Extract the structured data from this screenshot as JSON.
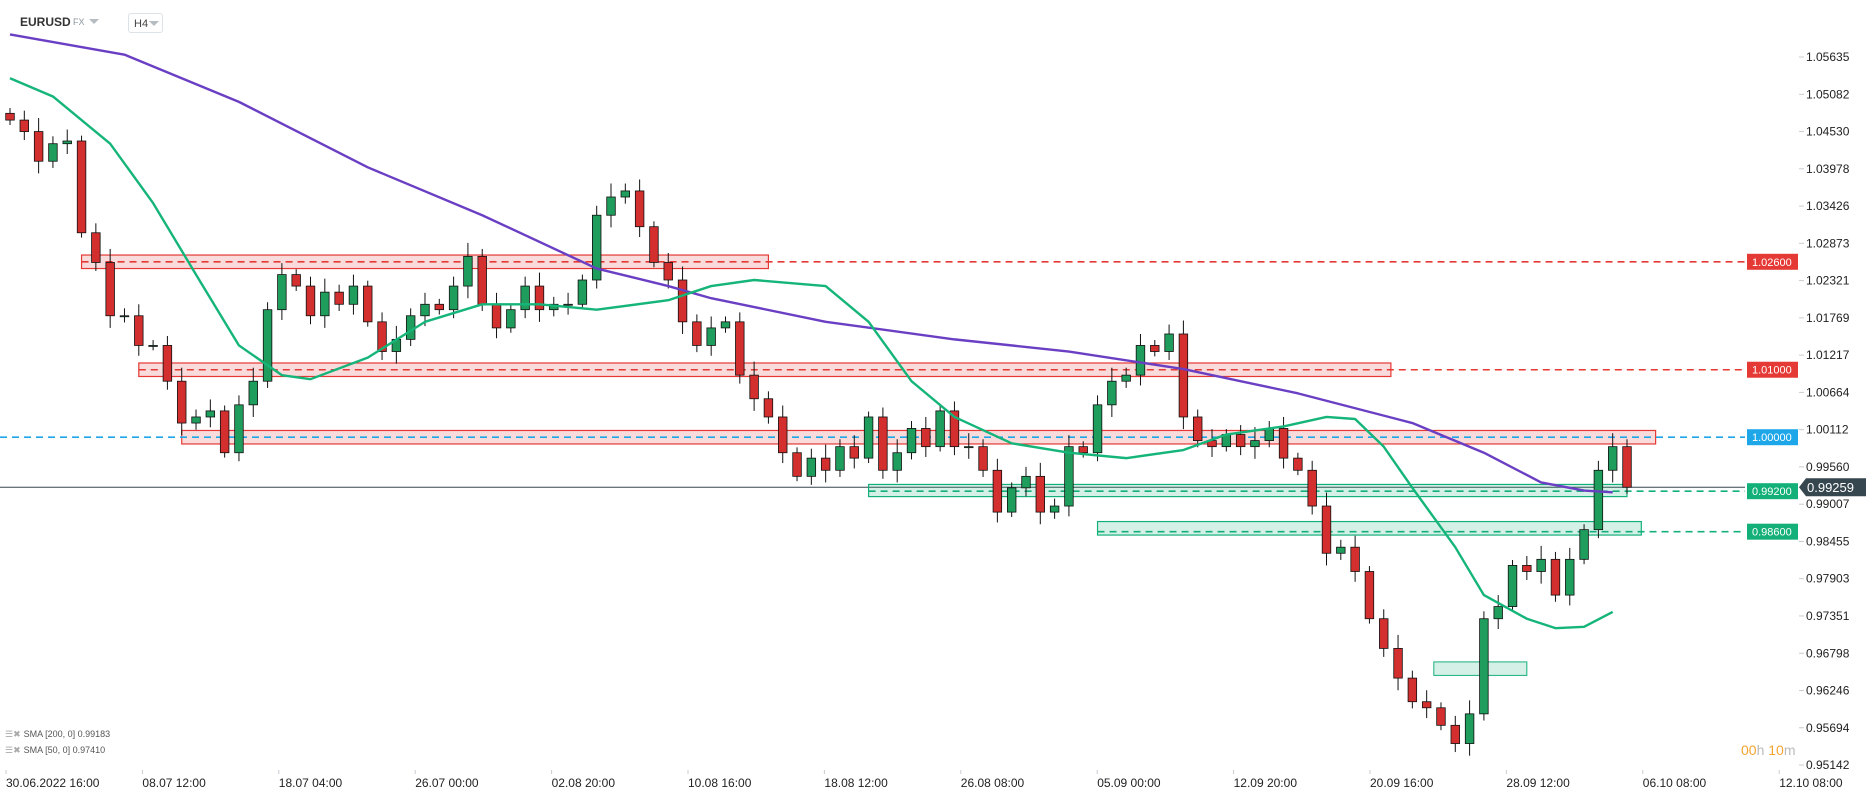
{
  "header": {
    "symbol": "EURUSD",
    "market": "FX",
    "timeframe": "H4"
  },
  "legend": [
    {
      "label": "SMA [200, 0] 0.99183",
      "color": "#6a3fc4"
    },
    {
      "label": "SMA [50, 0] 0.97410",
      "color": "#15b57a"
    }
  ],
  "countdown": {
    "hours": "00",
    "h": "h",
    "minutes": "10",
    "m": "m"
  },
  "chart_data": {
    "type": "candlestick",
    "symbol": "EURUSD",
    "timeframe": "H4",
    "ylim": [
      0.95142,
      1.05635
    ],
    "y_ticks": [
      "1.05635",
      "1.05082",
      "1.04530",
      "1.03978",
      "1.03426",
      "1.02873",
      "1.02321",
      "1.01769",
      "1.01217",
      "1.00664",
      "1.00112",
      "0.99560",
      "0.99007",
      "0.98455",
      "0.97903",
      "0.97351",
      "0.96798",
      "0.96246",
      "0.95694",
      "0.95142"
    ],
    "x_ticks": [
      "30.06.2022  16:00",
      "08.07  12:00",
      "18.07  04:00",
      "26.07  00:00",
      "02.08  20:00",
      "10.08  16:00",
      "18.08  12:00",
      "26.08  08:00",
      "05.09  00:00",
      "12.09  20:00",
      "20.09  16:00",
      "28.09  12:00",
      "06.10  08:00",
      "12.10  08:00"
    ],
    "closes": [
      1.047,
      1.0453,
      1.0409,
      1.0435,
      1.0439,
      1.0303,
      1.0259,
      1.018,
      1.018,
      1.0136,
      1.0136,
      1.0083,
      1.0021,
      1.003,
      1.0039,
      0.9977,
      1.0048,
      1.0083,
      1.0189,
      1.0241,
      1.0224,
      1.018,
      1.0215,
      1.0197,
      1.0224,
      1.0171,
      1.0127,
      1.0145,
      1.018,
      1.0197,
      1.0189,
      1.0224,
      1.0268,
      1.0197,
      1.0162,
      1.0189,
      1.0224,
      1.0189,
      1.0197,
      1.0197,
      1.0233,
      1.0329,
      1.0356,
      1.0365,
      1.0312,
      1.0259,
      1.0233,
      1.0171,
      1.0136,
      1.0162,
      1.0171,
      1.0092,
      1.0057,
      1.003,
      0.9977,
      0.9942,
      0.9969,
      0.9951,
      0.9986,
      0.9969,
      1.003,
      0.9951,
      0.9977,
      1.0013,
      0.9986,
      1.0039,
      0.9986,
      0.9986,
      0.9951,
      0.9889,
      0.9925,
      0.9942,
      0.9889,
      0.9898,
      0.9986,
      0.9977,
      1.0048,
      1.0083,
      1.0092,
      1.0136,
      1.0127,
      1.0153,
      1.003,
      0.9995,
      0.9986,
      1.0004,
      0.9986,
      0.9995,
      1.0013,
      0.9969,
      0.9951,
      0.9898,
      0.9828,
      0.9837,
      0.9801,
      0.9731,
      0.9687,
      0.9643,
      0.9608,
      0.9599,
      0.9573,
      0.9546,
      0.959,
      0.9731,
      0.9749,
      0.981,
      0.9801,
      0.9819,
      0.9766,
      0.9819,
      0.9863,
      0.9951,
      0.9986,
      0.99259
    ],
    "sma200": [
      [
        0,
        1.0597
      ],
      [
        8,
        1.0567
      ],
      [
        16,
        1.0497
      ],
      [
        25,
        1.04
      ],
      [
        33,
        1.0329
      ],
      [
        41,
        1.025
      ],
      [
        46,
        1.0224
      ],
      [
        49,
        1.0206
      ],
      [
        57,
        1.0171
      ],
      [
        66,
        1.0145
      ],
      [
        74,
        1.0127
      ],
      [
        82,
        1.0101
      ],
      [
        90,
        1.0065
      ],
      [
        98,
        1.0021
      ],
      [
        103,
        0.9977
      ],
      [
        107,
        0.9933
      ],
      [
        110,
        0.9921
      ],
      [
        112,
        0.99183
      ]
    ],
    "sma50": [
      [
        0,
        1.0532
      ],
      [
        3,
        1.0505
      ],
      [
        7,
        1.0435
      ],
      [
        10,
        1.0347
      ],
      [
        13,
        1.0241
      ],
      [
        16,
        1.0136
      ],
      [
        19,
        1.0092
      ],
      [
        21,
        1.0086
      ],
      [
        25,
        1.0118
      ],
      [
        29,
        1.0171
      ],
      [
        33,
        1.0197
      ],
      [
        37,
        1.0197
      ],
      [
        41,
        1.0189
      ],
      [
        46,
        1.0203
      ],
      [
        49,
        1.0224
      ],
      [
        52,
        1.0233
      ],
      [
        57,
        1.0224
      ],
      [
        60,
        1.0171
      ],
      [
        63,
        1.0083
      ],
      [
        66,
        1.003
      ],
      [
        70,
        0.9991
      ],
      [
        74,
        0.9977
      ],
      [
        78,
        0.9969
      ],
      [
        82,
        0.9981
      ],
      [
        85,
        1.0004
      ],
      [
        89,
        1.0016
      ],
      [
        92,
        1.003
      ],
      [
        94,
        1.0027
      ],
      [
        96,
        0.9986
      ],
      [
        98,
        0.9925
      ],
      [
        101,
        0.9837
      ],
      [
        103,
        0.9766
      ],
      [
        106,
        0.9731
      ],
      [
        108,
        0.9717
      ],
      [
        110,
        0.9719
      ],
      [
        112,
        0.9741
      ]
    ],
    "levels": [
      {
        "label": "1.02600",
        "value": 1.026,
        "color": "#e53935",
        "zone": [
          1.025,
          1.027
        ],
        "from": 5,
        "to": 53
      },
      {
        "label": "1.01000",
        "value": 1.01,
        "color": "#e53935",
        "zone": [
          1.009,
          1.011
        ],
        "from": 9,
        "to": 96.5
      },
      {
        "label": "1.00000",
        "value": 1.0,
        "color": "#1ea7e8",
        "zone": [
          0.999,
          1.001
        ],
        "zone_color": "#e53935",
        "from": 12,
        "to": 115
      },
      {
        "label": "0.99200",
        "value": 0.992,
        "color": "#14b07a",
        "zone": [
          0.9912,
          0.993
        ],
        "from": 60,
        "to": 113
      },
      {
        "label": "0.98600",
        "value": 0.986,
        "color": "#14b07a",
        "zone": [
          0.9855,
          0.9875
        ],
        "from": 76,
        "to": 114
      }
    ],
    "small_zone": {
      "zone": [
        0.9647,
        0.9667
      ],
      "from": 99.5,
      "to": 106,
      "color": "#14b07a"
    },
    "last_price": "0.99259",
    "colors": {
      "up": "#1f9d5c",
      "down": "#d32f2f",
      "sma200": "#6a3fc4",
      "sma50": "#15b57a",
      "last": "#37474f"
    }
  }
}
